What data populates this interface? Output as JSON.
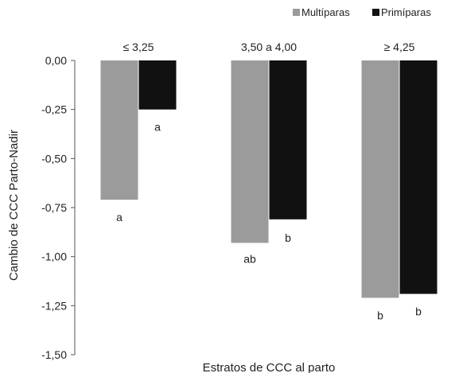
{
  "chart_data": {
    "type": "bar",
    "title": "",
    "xlabel": "Estratos de CCC al parto",
    "ylabel": "Cambio de CCC Parto-Nadir",
    "categories": [
      "≤ 3,25",
      "3,50 a 4,00",
      "≥ 4,25"
    ],
    "series": [
      {
        "name": "Multíparas",
        "color": "#9b9b9b",
        "values": [
          -0.71,
          -0.93,
          -1.21
        ],
        "labels": [
          "a",
          "ab",
          "b"
        ]
      },
      {
        "name": "Primíparas",
        "color": "#111111",
        "values": [
          -0.25,
          -0.81,
          -1.19
        ],
        "labels": [
          "a",
          "b",
          "b"
        ]
      }
    ],
    "ylim": [
      -1.5,
      0
    ],
    "yticks": [
      0,
      -0.25,
      -0.5,
      -0.75,
      -1,
      -1.25,
      -1.5
    ],
    "ytick_labels": [
      "0,00",
      "-0,25",
      "-0,50",
      "-0,75",
      "-1,00",
      "-1,25",
      "-1,50"
    ],
    "grid": false,
    "legend_position": "top-right",
    "category_label_position": "top"
  }
}
